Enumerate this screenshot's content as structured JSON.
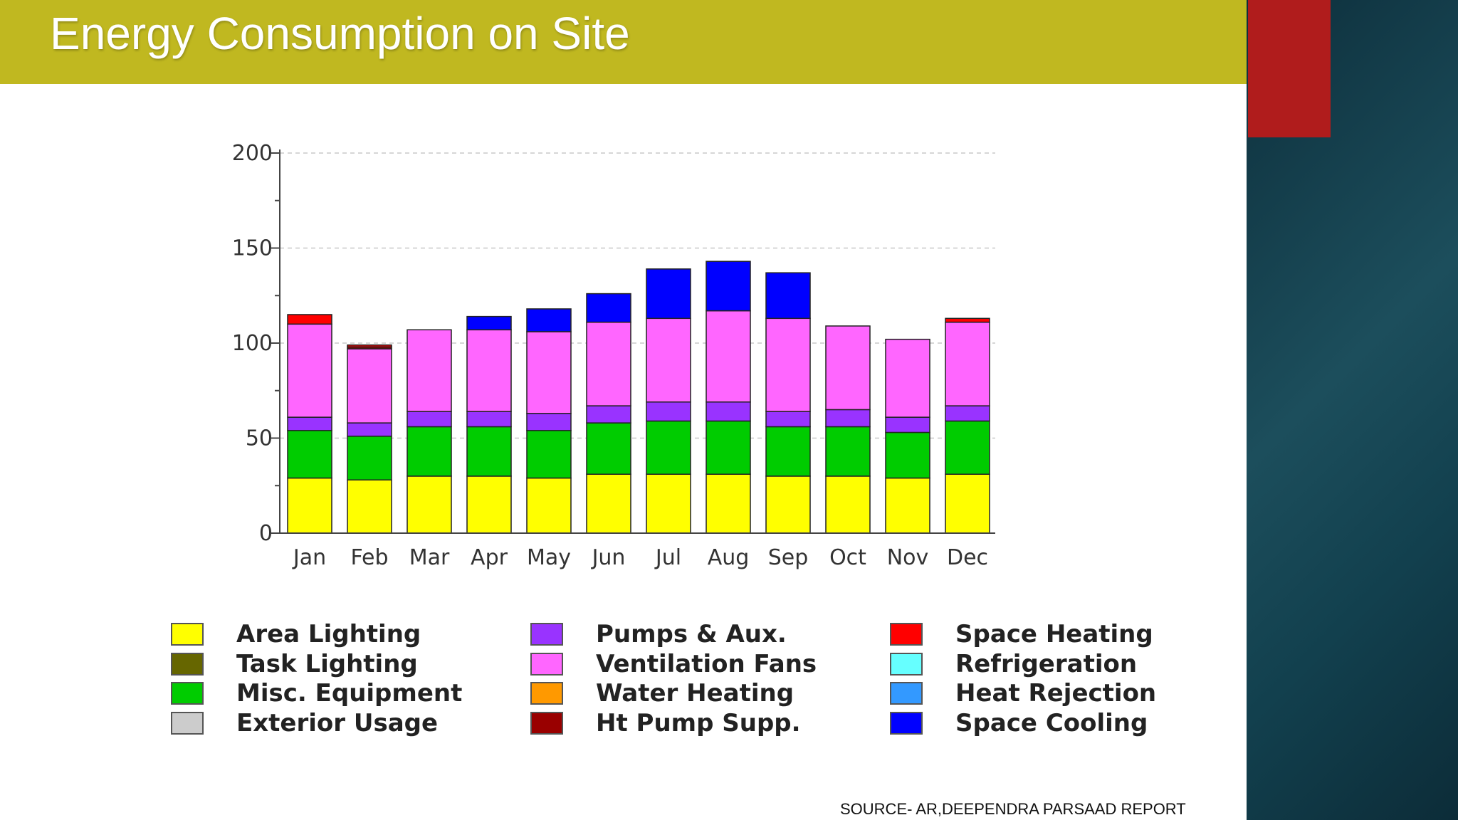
{
  "title": "Energy Consumption on Site",
  "source": "SOURCE- AR,DEEPENDRA PARSAAD REPORT",
  "colors": {
    "title_bar": "#c0b820",
    "accent_red": "#b01c1c",
    "side_panel": "#1c4e5c"
  },
  "chart_data": {
    "type": "bar",
    "stacked": true,
    "categories": [
      "Jan",
      "Feb",
      "Mar",
      "Apr",
      "May",
      "Jun",
      "Jul",
      "Aug",
      "Sep",
      "Oct",
      "Nov",
      "Dec"
    ],
    "ylim": [
      0,
      200
    ],
    "yticks": [
      0,
      50,
      100,
      150,
      200
    ],
    "grid": true,
    "xlabel": "",
    "ylabel": "",
    "series": [
      {
        "name": "Area Lighting",
        "color": "#ffff00",
        "values": [
          29,
          28,
          30,
          30,
          29,
          31,
          31,
          31,
          30,
          30,
          29,
          31
        ]
      },
      {
        "name": "Task Lighting",
        "color": "#666600",
        "values": [
          0,
          0,
          0,
          0,
          0,
          0,
          0,
          0,
          0,
          0,
          0,
          0
        ]
      },
      {
        "name": "Misc. Equipment",
        "color": "#00cc00",
        "values": [
          25,
          23,
          26,
          26,
          25,
          27,
          28,
          28,
          26,
          26,
          24,
          28
        ]
      },
      {
        "name": "Exterior Usage",
        "color": "#cccccc",
        "values": [
          0,
          0,
          0,
          0,
          0,
          0,
          0,
          0,
          0,
          0,
          0,
          0
        ]
      },
      {
        "name": "Pumps & Aux.",
        "color": "#9933ff",
        "values": [
          7,
          7,
          8,
          8,
          9,
          9,
          10,
          10,
          8,
          9,
          8,
          8
        ]
      },
      {
        "name": "Ventilation Fans",
        "color": "#ff66ff",
        "values": [
          49,
          39,
          43,
          43,
          43,
          44,
          44,
          48,
          49,
          44,
          41,
          44
        ]
      },
      {
        "name": "Water Heating",
        "color": "#ff9900",
        "values": [
          0,
          0,
          0,
          0,
          0,
          0,
          0,
          0,
          0,
          0,
          0,
          0
        ]
      },
      {
        "name": "Ht Pump Supp.",
        "color": "#990000",
        "values": [
          0,
          1,
          0,
          0,
          0,
          0,
          0,
          0,
          0,
          0,
          0,
          0
        ]
      },
      {
        "name": "Space Heating",
        "color": "#ff0000",
        "values": [
          5,
          1,
          0,
          0,
          0,
          0,
          0,
          0,
          0,
          0,
          0,
          2
        ]
      },
      {
        "name": "Refrigeration",
        "color": "#66ffff",
        "values": [
          0,
          0,
          0,
          0,
          0,
          0,
          0,
          0,
          0,
          0,
          0,
          0
        ]
      },
      {
        "name": "Heat Rejection",
        "color": "#3399ff",
        "values": [
          0,
          0,
          0,
          0,
          0,
          0,
          0,
          0,
          0,
          0,
          0,
          0
        ]
      },
      {
        "name": "Space Cooling",
        "color": "#0000ff",
        "values": [
          0,
          0,
          0,
          7,
          12,
          15,
          26,
          26,
          24,
          0,
          0,
          0
        ]
      }
    ]
  }
}
